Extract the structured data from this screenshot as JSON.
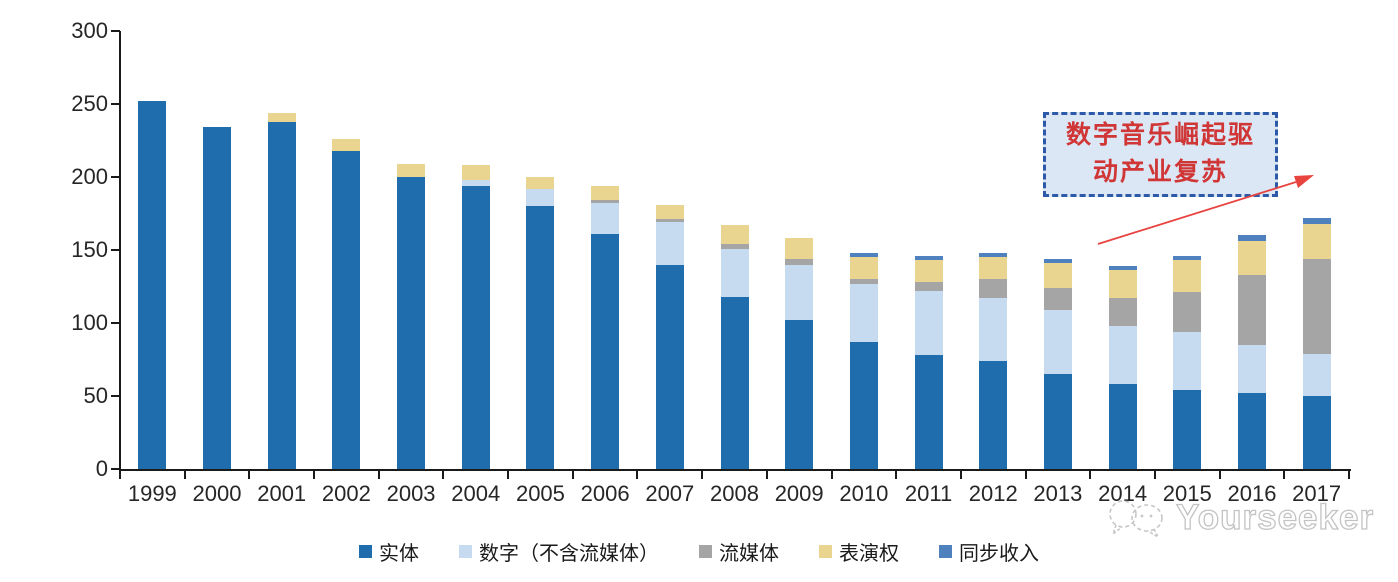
{
  "chart_data": {
    "type": "bar",
    "stacked": true,
    "title": "",
    "xlabel": "",
    "ylabel": "",
    "ylim": [
      0,
      300
    ],
    "yticks": [
      0,
      50,
      100,
      150,
      200,
      250,
      300
    ],
    "grid": false,
    "legend_position": "bottom",
    "categories": [
      "1999",
      "2000",
      "2001",
      "2002",
      "2003",
      "2004",
      "2005",
      "2006",
      "2007",
      "2008",
      "2009",
      "2010",
      "2011",
      "2012",
      "2013",
      "2014",
      "2015",
      "2016",
      "2017"
    ],
    "series": [
      {
        "name": "实体",
        "color": "#1f6dad",
        "values": [
          252,
          234,
          238,
          218,
          200,
          194,
          180,
          161,
          140,
          118,
          102,
          87,
          78,
          74,
          65,
          58,
          54,
          52,
          50
        ]
      },
      {
        "name": "数字（不含流媒体）",
        "color": "#c6daf0",
        "values": [
          0,
          0,
          0,
          0,
          0,
          4,
          12,
          21,
          29,
          33,
          38,
          40,
          44,
          43,
          44,
          40,
          40,
          33,
          29
        ]
      },
      {
        "name": "流媒体",
        "color": "#a5a5a5",
        "values": [
          0,
          0,
          0,
          0,
          0,
          0,
          0,
          2,
          2,
          3,
          4,
          3,
          6,
          13,
          15,
          19,
          27,
          48,
          65
        ]
      },
      {
        "name": "表演权",
        "color": "#e9d58f",
        "values": [
          0,
          0,
          6,
          8,
          9,
          10,
          8,
          10,
          10,
          13,
          14,
          15,
          15,
          15,
          17,
          19,
          22,
          23,
          24
        ]
      },
      {
        "name": "同步收入",
        "color": "#4e81bd",
        "values": [
          0,
          0,
          0,
          0,
          0,
          0,
          0,
          0,
          0,
          0,
          0,
          3,
          3,
          3,
          3,
          3,
          3,
          4,
          4
        ]
      }
    ],
    "axis_color": "#1a1a1a",
    "tick_label_color": "#262626"
  },
  "annotation": {
    "lines": [
      "数字音乐崛起驱",
      "动产业复苏"
    ],
    "text_color": "#d03636",
    "box_fill": "#dbe7f4",
    "border_color": "#2d5aa8",
    "arrow_color": "#e8433f"
  },
  "watermark": {
    "text": "Yourseeker",
    "logo": "chat-bubbles-icon",
    "color": "#b9b9b9"
  }
}
